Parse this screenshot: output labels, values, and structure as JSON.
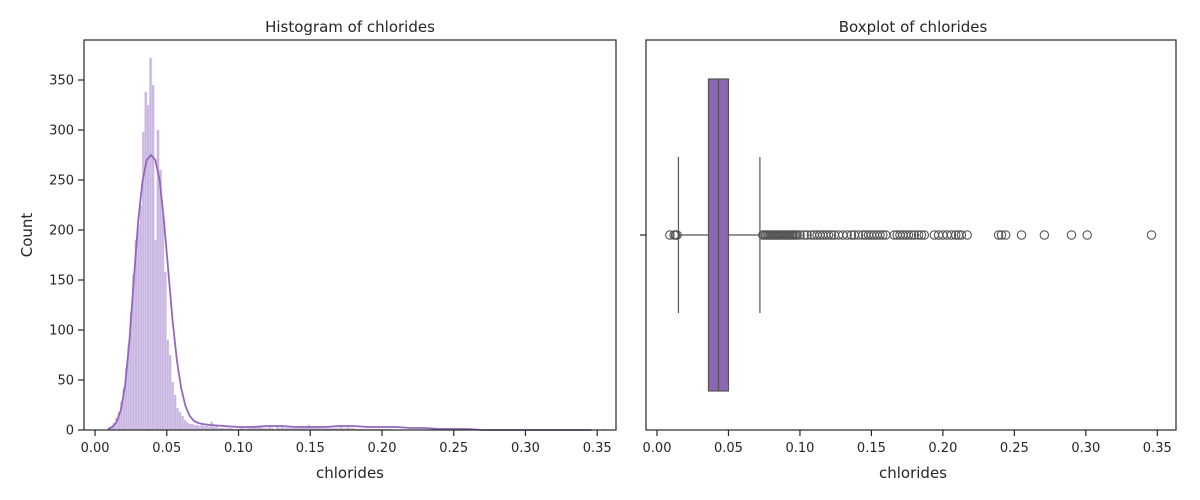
{
  "colors": {
    "hist_fill": "#c9b7e2",
    "hist_edge": "#dfd3ef",
    "kde_line": "#9467bd",
    "box_fill": "#8c68b4",
    "box_line": "#555555",
    "frame": "#262626"
  },
  "chart_data": [
    {
      "type": "bar",
      "subtype": "histogram",
      "title": "Histogram of chlorides",
      "xlabel": "chlorides",
      "ylabel": "Count",
      "xlim": [
        -0.0077,
        0.3631
      ],
      "ylim": [
        0,
        390
      ],
      "xticks": [
        0.0,
        0.05,
        0.1,
        0.15,
        0.2,
        0.25,
        0.3,
        0.35
      ],
      "xtick_labels": [
        "0.00",
        "0.05",
        "0.10",
        "0.15",
        "0.20",
        "0.25",
        "0.30",
        "0.35"
      ],
      "yticks": [
        0,
        50,
        100,
        150,
        200,
        250,
        300,
        350
      ],
      "ytick_labels": [
        "0",
        "50",
        "100",
        "150",
        "200",
        "250",
        "300",
        "350"
      ],
      "bin_edges_start": 0.009,
      "bin_width": 0.0017,
      "counts": [
        2,
        4,
        7,
        12,
        18,
        28,
        42,
        62,
        85,
        118,
        155,
        190,
        205,
        225,
        298,
        338,
        325,
        372,
        345,
        190,
        300,
        260,
        215,
        158,
        90,
        75,
        48,
        35,
        22,
        18,
        14,
        10,
        8,
        6,
        6,
        5,
        5,
        4,
        5,
        4,
        4,
        3,
        8,
        3,
        5,
        2,
        2,
        2,
        2,
        2,
        2,
        1,
        1,
        1,
        2,
        2,
        1,
        2,
        3,
        4,
        3,
        2,
        3,
        2,
        2,
        2,
        3,
        2,
        1,
        3,
        2,
        3,
        2,
        2,
        2,
        2,
        2,
        2,
        2,
        4,
        3,
        4,
        5,
        3,
        3,
        2,
        2,
        2,
        2,
        2,
        2,
        2,
        2,
        2,
        2,
        3,
        2,
        2,
        3,
        2,
        2,
        1,
        1,
        1,
        1,
        1,
        1,
        1,
        1,
        1,
        1,
        1,
        1,
        1,
        1,
        1,
        0,
        0,
        0,
        0,
        0,
        0,
        0,
        0,
        0,
        0,
        0,
        0,
        0,
        0,
        0,
        0,
        0,
        0,
        0,
        0,
        0,
        0,
        0,
        0,
        0,
        0,
        0,
        0,
        0,
        0,
        0,
        0,
        0,
        0,
        0,
        0,
        0,
        0,
        0,
        0,
        0,
        0,
        0,
        0,
        0,
        0,
        0,
        0,
        0,
        0,
        0,
        0,
        0,
        0,
        0,
        0,
        0,
        0,
        0,
        0,
        0,
        0,
        0,
        0,
        0,
        0,
        0,
        0,
        0,
        0,
        0,
        0,
        0,
        0,
        1,
        0,
        0,
        0,
        0,
        0,
        0,
        0,
        0,
        0,
        0,
        0,
        0,
        1
      ],
      "kde": {
        "x": [
          0.009,
          0.012,
          0.015,
          0.018,
          0.021,
          0.024,
          0.027,
          0.03,
          0.033,
          0.036,
          0.039,
          0.042,
          0.045,
          0.048,
          0.051,
          0.054,
          0.057,
          0.06,
          0.063,
          0.066,
          0.069,
          0.072,
          0.075,
          0.08,
          0.09,
          0.1,
          0.11,
          0.12,
          0.13,
          0.14,
          0.15,
          0.16,
          0.17,
          0.18,
          0.19,
          0.2,
          0.21,
          0.22,
          0.23,
          0.24,
          0.25,
          0.26,
          0.27,
          0.28,
          0.29,
          0.3,
          0.31,
          0.32,
          0.33,
          0.34,
          0.346
        ],
        "y": [
          1,
          3,
          8,
          20,
          45,
          90,
          150,
          208,
          248,
          270,
          275,
          270,
          250,
          210,
          160,
          110,
          70,
          42,
          24,
          14,
          9,
          7,
          6,
          5,
          4,
          3,
          3,
          4,
          4,
          3,
          3,
          3,
          4,
          4,
          3,
          3,
          3,
          2,
          2,
          1,
          1,
          1,
          0,
          0,
          0,
          0,
          0,
          0,
          0,
          0,
          0
        ]
      }
    },
    {
      "type": "boxplot",
      "title": "Boxplot of chlorides",
      "xlabel": "chlorides",
      "xlim": [
        -0.0077,
        0.3631
      ],
      "xticks": [
        0.0,
        0.05,
        0.1,
        0.15,
        0.2,
        0.25,
        0.3,
        0.35
      ],
      "xtick_labels": [
        "0.00",
        "0.05",
        "0.10",
        "0.15",
        "0.20",
        "0.25",
        "0.30",
        "0.35"
      ],
      "whisker_low": 0.015,
      "q1": 0.036,
      "median": 0.043,
      "q3": 0.05,
      "whisker_high": 0.072,
      "outliers": [
        0.009,
        0.012,
        0.013,
        0.014,
        0.074,
        0.075,
        0.076,
        0.077,
        0.078,
        0.079,
        0.08,
        0.081,
        0.082,
        0.083,
        0.084,
        0.085,
        0.086,
        0.087,
        0.088,
        0.089,
        0.09,
        0.091,
        0.092,
        0.093,
        0.094,
        0.095,
        0.096,
        0.097,
        0.098,
        0.1,
        0.103,
        0.105,
        0.108,
        0.11,
        0.112,
        0.114,
        0.116,
        0.118,
        0.12,
        0.122,
        0.124,
        0.127,
        0.13,
        0.133,
        0.136,
        0.138,
        0.141,
        0.144,
        0.146,
        0.148,
        0.15,
        0.152,
        0.154,
        0.156,
        0.158,
        0.16,
        0.166,
        0.168,
        0.17,
        0.172,
        0.174,
        0.176,
        0.178,
        0.18,
        0.183,
        0.185,
        0.187,
        0.194,
        0.197,
        0.2,
        0.203,
        0.206,
        0.209,
        0.211,
        0.213,
        0.217,
        0.239,
        0.241,
        0.244,
        0.255,
        0.271,
        0.29,
        0.301,
        0.346
      ]
    }
  ]
}
